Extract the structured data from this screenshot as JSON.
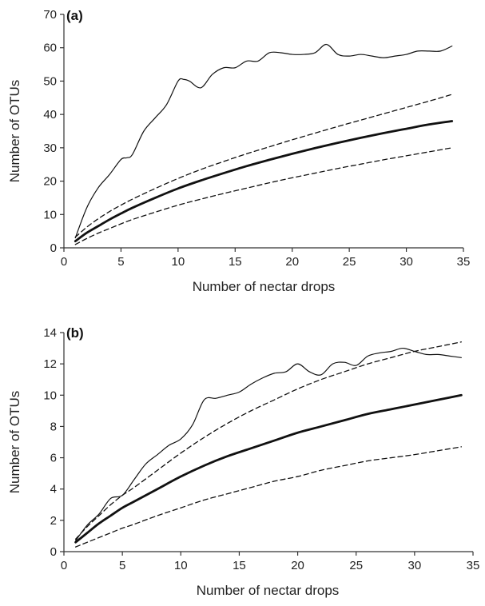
{
  "chart_data": [
    {
      "type": "line",
      "panel_label": "(a)",
      "xlabel": "Number of nectar drops",
      "ylabel": "Number of OTUs",
      "xlim": [
        0,
        35
      ],
      "ylim": [
        0,
        70
      ],
      "xticks": [
        0,
        5,
        10,
        15,
        20,
        25,
        30,
        35
      ],
      "yticks": [
        0,
        10,
        20,
        30,
        40,
        50,
        60,
        70
      ],
      "grid": false,
      "legend": "none",
      "series": [
        {
          "style": "thin-solid",
          "x": [
            1,
            2,
            3,
            4,
            5,
            5.5,
            6,
            7,
            8,
            9,
            10,
            10.5,
            11,
            12,
            13,
            14,
            15,
            16,
            17,
            18,
            19,
            20,
            21,
            22,
            23,
            24,
            25,
            26,
            27,
            28,
            29,
            30,
            31,
            32,
            33,
            34
          ],
          "y": [
            3,
            12,
            18,
            22,
            26.5,
            27,
            28,
            35,
            39,
            43,
            50,
            50.5,
            50,
            48,
            52,
            54,
            54,
            56,
            56,
            58.5,
            58.5,
            58,
            58,
            58.5,
            61,
            58,
            57.5,
            58,
            57.5,
            57,
            57.5,
            58,
            59,
            59,
            59,
            60.5
          ]
        },
        {
          "style": "thick-solid",
          "x": [
            1,
            2,
            3,
            4,
            5,
            6,
            8,
            10,
            12,
            14,
            16,
            18,
            20,
            22,
            24,
            26,
            28,
            30,
            32,
            34
          ],
          "y": [
            2,
            4.5,
            6.5,
            8.5,
            10.3,
            12,
            15,
            17.8,
            20.2,
            22.4,
            24.5,
            26.4,
            28.2,
            29.9,
            31.5,
            33,
            34.4,
            35.7,
            37,
            38
          ]
        },
        {
          "style": "dashed",
          "x": [
            1,
            2,
            3,
            4,
            5,
            6,
            8,
            10,
            12,
            14,
            16,
            18,
            20,
            22,
            24,
            26,
            28,
            30,
            32,
            34
          ],
          "y": [
            3.2,
            6.2,
            8.7,
            10.9,
            12.8,
            14.6,
            17.8,
            20.8,
            23.5,
            25.9,
            28.2,
            30.3,
            32.4,
            34.4,
            36.4,
            38.3,
            40.2,
            42.1,
            44,
            46
          ]
        },
        {
          "style": "dashed",
          "x": [
            1,
            2,
            3,
            4,
            5,
            6,
            8,
            10,
            12,
            14,
            16,
            18,
            20,
            22,
            24,
            26,
            28,
            30,
            32,
            34
          ],
          "y": [
            1,
            2.8,
            4.4,
            5.8,
            7.2,
            8.5,
            10.7,
            12.8,
            14.6,
            16.3,
            17.9,
            19.5,
            21,
            22.4,
            23.8,
            25.1,
            26.4,
            27.6,
            28.8,
            30
          ]
        }
      ]
    },
    {
      "type": "line",
      "panel_label": "(b)",
      "xlabel": "Number of nectar drops",
      "ylabel": "Number of OTUs",
      "xlim": [
        0,
        35
      ],
      "ylim": [
        0,
        14
      ],
      "xticks": [
        0,
        5,
        10,
        15,
        20,
        25,
        30,
        35
      ],
      "yticks": [
        0,
        2,
        4,
        6,
        8,
        10,
        12,
        14
      ],
      "grid": false,
      "legend": "none",
      "series": [
        {
          "style": "thin-solid",
          "x": [
            1,
            2,
            3,
            4,
            5,
            6,
            7,
            8,
            9,
            10,
            11,
            12,
            13,
            14,
            15,
            16,
            17,
            18,
            19,
            20,
            21,
            22,
            23,
            24,
            25,
            26,
            27,
            28,
            29,
            30,
            31,
            32,
            33,
            34
          ],
          "y": [
            0.7,
            1.7,
            2.4,
            3.4,
            3.6,
            4.6,
            5.6,
            6.2,
            6.8,
            7.2,
            8.1,
            9.7,
            9.8,
            10,
            10.2,
            10.7,
            11.1,
            11.4,
            11.5,
            12,
            11.5,
            11.3,
            12,
            12.1,
            11.9,
            12.5,
            12.7,
            12.8,
            13,
            12.8,
            12.6,
            12.6,
            12.5,
            12.4
          ]
        },
        {
          "style": "thick-solid",
          "x": [
            1,
            2,
            3,
            4,
            5,
            6,
            8,
            10,
            12,
            14,
            16,
            18,
            20,
            22,
            24,
            26,
            28,
            30,
            32,
            34
          ],
          "y": [
            0.6,
            1.2,
            1.8,
            2.3,
            2.8,
            3.2,
            4,
            4.8,
            5.5,
            6.1,
            6.6,
            7.1,
            7.6,
            8,
            8.4,
            8.8,
            9.1,
            9.4,
            9.7,
            10
          ]
        },
        {
          "style": "dashed",
          "x": [
            1,
            2,
            3,
            4,
            5,
            6,
            8,
            10,
            12,
            14,
            16,
            18,
            20,
            22,
            24,
            26,
            28,
            30,
            32,
            34
          ],
          "y": [
            0.8,
            1.6,
            2.3,
            3,
            3.6,
            4.1,
            5.2,
            6.3,
            7.3,
            8.2,
            9,
            9.7,
            10.4,
            11,
            11.5,
            12,
            12.4,
            12.8,
            13.1,
            13.4
          ]
        },
        {
          "style": "dashed",
          "x": [
            1,
            2,
            3,
            4,
            5,
            6,
            8,
            10,
            12,
            14,
            16,
            18,
            20,
            22,
            24,
            26,
            28,
            30,
            32,
            34
          ],
          "y": [
            0.3,
            0.6,
            0.9,
            1.2,
            1.5,
            1.75,
            2.3,
            2.8,
            3.3,
            3.7,
            4.1,
            4.5,
            4.8,
            5.2,
            5.5,
            5.8,
            6,
            6.2,
            6.45,
            6.7
          ]
        }
      ]
    }
  ]
}
